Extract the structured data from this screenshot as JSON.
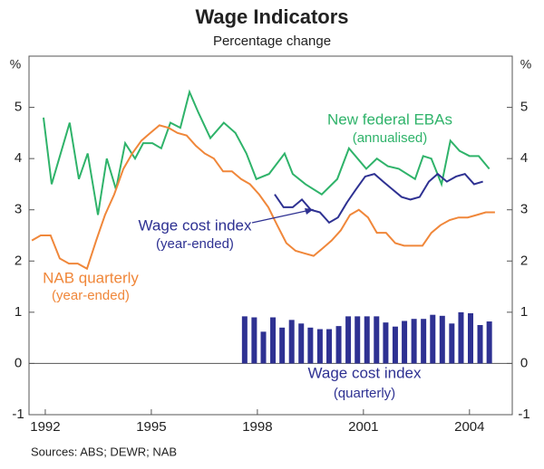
{
  "chart_data": {
    "type": "combo",
    "title": "Wage Indicators",
    "subtitle": "Percentage change",
    "ylabel": "%",
    "source": "Sources: ABS; DEWR; NAB",
    "xlim": [
      1991.54,
      2005.21
    ],
    "xticks": [
      1992,
      1995,
      1998,
      2001,
      2004
    ],
    "ylim": [
      -1,
      6
    ],
    "yticks": [
      -1,
      0,
      1,
      2,
      3,
      4,
      5
    ],
    "y2lim": [
      -1,
      6
    ],
    "y2ticks": [
      -1,
      0,
      1,
      2,
      3,
      4,
      5
    ],
    "series": [
      {
        "name": "New federal EBAs",
        "note": "(annualised)",
        "type": "line",
        "color": "#2fb36a",
        "x": [
          1991.95,
          1992.18,
          1992.69,
          1992.95,
          1993.2,
          1993.49,
          1993.74,
          1994.0,
          1994.26,
          1994.54,
          1994.77,
          1995.03,
          1995.28,
          1995.54,
          1995.82,
          1996.08,
          1996.33,
          1996.67,
          1997.05,
          1997.38,
          1997.69,
          1997.97,
          1998.33,
          1998.77,
          1999.0,
          1999.36,
          1999.82,
          2000.26,
          2000.59,
          2001.08,
          2001.38,
          2001.69,
          2002.0,
          2002.46,
          2002.69,
          2002.92,
          2003.21,
          2003.46,
          2003.72,
          2004.0,
          2004.26,
          2004.56
        ],
        "values": [
          4.8,
          3.5,
          4.7,
          3.6,
          4.1,
          2.9,
          4.0,
          3.4,
          4.3,
          4.0,
          4.3,
          4.3,
          4.2,
          4.7,
          4.6,
          5.3,
          4.9,
          4.4,
          4.7,
          4.5,
          4.1,
          3.6,
          3.7,
          4.1,
          3.7,
          3.5,
          3.3,
          3.6,
          4.2,
          3.8,
          4.0,
          3.85,
          3.8,
          3.6,
          4.05,
          4.0,
          3.5,
          4.35,
          4.15,
          4.05,
          4.05,
          3.8
        ]
      },
      {
        "name": "NAB quarterly",
        "note": "(year-ended)",
        "type": "line",
        "color": "#f0873a",
        "x": [
          1991.62,
          1991.87,
          1992.15,
          1992.41,
          1992.67,
          1992.92,
          1993.18,
          1993.44,
          1993.69,
          1993.95,
          1994.21,
          1994.46,
          1994.72,
          1994.97,
          1995.23,
          1995.49,
          1995.74,
          1996.0,
          1996.26,
          1996.51,
          1996.77,
          1997.03,
          1997.28,
          1997.54,
          1997.79,
          1998.05,
          1998.31,
          1998.56,
          1998.82,
          1999.08,
          1999.33,
          1999.59,
          1999.85,
          2000.1,
          2000.36,
          2000.62,
          2000.87,
          2001.13,
          2001.38,
          2001.64,
          2001.9,
          2002.15,
          2002.41,
          2002.67,
          2002.92,
          2003.18,
          2003.44,
          2003.69,
          2003.95,
          2004.21,
          2004.46,
          2004.72
        ],
        "values": [
          2.4,
          2.5,
          2.5,
          2.05,
          1.95,
          1.95,
          1.85,
          2.4,
          2.9,
          3.3,
          3.8,
          4.1,
          4.35,
          4.5,
          4.65,
          4.6,
          4.5,
          4.45,
          4.25,
          4.1,
          4.0,
          3.75,
          3.75,
          3.6,
          3.5,
          3.3,
          3.05,
          2.7,
          2.35,
          2.2,
          2.15,
          2.1,
          2.25,
          2.4,
          2.6,
          2.9,
          3.0,
          2.85,
          2.55,
          2.55,
          2.35,
          2.3,
          2.3,
          2.3,
          2.55,
          2.7,
          2.8,
          2.85,
          2.85,
          2.9,
          2.95,
          2.95
        ]
      },
      {
        "name": "Wage cost index",
        "note": "(year-ended)",
        "type": "line",
        "color": "#2e3192",
        "x": [
          1998.49,
          1998.74,
          1999.0,
          1999.26,
          1999.51,
          1999.77,
          2000.03,
          2000.28,
          2000.54,
          2000.79,
          2001.05,
          2001.31,
          2001.56,
          2001.82,
          2002.08,
          2002.33,
          2002.59,
          2002.85,
          2003.1,
          2003.36,
          2003.62,
          2003.87,
          2004.13,
          2004.38
        ],
        "values": [
          3.3,
          3.05,
          3.05,
          3.2,
          3.0,
          2.95,
          2.75,
          2.85,
          3.15,
          3.4,
          3.65,
          3.7,
          3.55,
          3.4,
          3.25,
          3.2,
          3.25,
          3.55,
          3.7,
          3.55,
          3.65,
          3.7,
          3.5,
          3.55
        ]
      },
      {
        "name": "Wage cost index",
        "note": "(quarterly)",
        "type": "bar",
        "color": "#2e3192",
        "x": [
          1997.64,
          1997.91,
          1998.17,
          1998.44,
          1998.7,
          1998.97,
          1999.24,
          1999.5,
          1999.77,
          2000.03,
          2000.3,
          2000.57,
          2000.83,
          2001.1,
          2001.37,
          2001.63,
          2001.9,
          2002.16,
          2002.43,
          2002.7,
          2002.96,
          2003.23,
          2003.5,
          2003.76,
          2004.03,
          2004.3,
          2004.56
        ],
        "values": [
          0.92,
          0.9,
          0.62,
          0.9,
          0.7,
          0.85,
          0.78,
          0.7,
          0.67,
          0.67,
          0.73,
          0.92,
          0.92,
          0.92,
          0.92,
          0.8,
          0.72,
          0.83,
          0.87,
          0.87,
          0.95,
          0.93,
          0.78,
          1.0,
          0.98,
          0.75,
          0.82
        ]
      }
    ]
  }
}
